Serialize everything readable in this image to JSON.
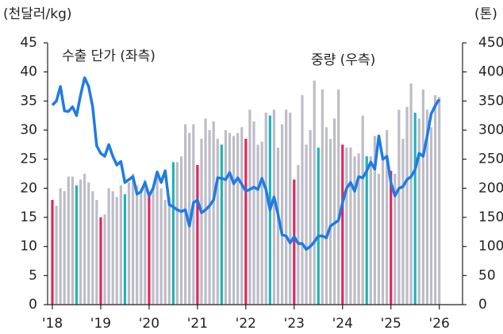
{
  "chart_data": {
    "type": "bar_line",
    "y_label": "(천달러/kg)",
    "y2_label": "(톤)",
    "categories": [
      "'18",
      null,
      null,
      null,
      null,
      null,
      null,
      null,
      null,
      null,
      null,
      null,
      "'19",
      null,
      null,
      null,
      null,
      null,
      null,
      null,
      null,
      null,
      null,
      null,
      "'20",
      null,
      null,
      null,
      null,
      null,
      null,
      null,
      null,
      null,
      null,
      null,
      "'21",
      null,
      null,
      null,
      null,
      null,
      null,
      null,
      null,
      null,
      null,
      null,
      "'22",
      null,
      null,
      null,
      null,
      null,
      null,
      null,
      null,
      null,
      null,
      null,
      "'23",
      null,
      null,
      null,
      null,
      null,
      null,
      null,
      null,
      null,
      null,
      null,
      "'24",
      null,
      null,
      null,
      null,
      null,
      null,
      null,
      null,
      null,
      null,
      null,
      "'25",
      null,
      null,
      null,
      null,
      null,
      null,
      null,
      null,
      null,
      null,
      null,
      "'26"
    ],
    "ylim": [
      0,
      45
    ],
    "yticks": [
      0,
      5,
      10,
      15,
      20,
      25,
      30,
      35,
      40,
      45
    ],
    "y2lim": [
      0,
      450
    ],
    "y2ticks": [
      0,
      50,
      100,
      150,
      200,
      250,
      300,
      350,
      400,
      450
    ],
    "series": [
      {
        "name": "중량 (우측)",
        "type": "bar",
        "axis": "y2",
        "color": "#bdbdc7",
        "colors": [
          "#e2245c",
          "#bdbdc7",
          "#bdbdc7",
          "#bdbdc7",
          "#bdbdc7",
          "#bdbdc7",
          "#1fb3b8",
          "#bdbdc7",
          "#bdbdc7",
          "#bdbdc7",
          "#bdbdc7",
          "#bdbdc7",
          "#e2245c",
          "#bdbdc7",
          "#bdbdc7",
          "#bdbdc7",
          "#bdbdc7",
          "#bdbdc7",
          "#1fb3b8",
          "#bdbdc7",
          "#bdbdc7",
          "#bdbdc7",
          "#bdbdc7",
          "#bdbdc7",
          "#e2245c",
          "#bdbdc7",
          "#bdbdc7",
          "#bdbdc7",
          "#bdbdc7",
          "#bdbdc7",
          "#1fb3b8",
          "#bdbdc7",
          "#bdbdc7",
          "#bdbdc7",
          "#bdbdc7",
          "#bdbdc7",
          "#e2245c",
          "#bdbdc7",
          "#bdbdc7",
          "#bdbdc7",
          "#bdbdc7",
          "#bdbdc7",
          "#1fb3b8",
          "#bdbdc7",
          "#bdbdc7",
          "#bdbdc7",
          "#bdbdc7",
          "#bdbdc7",
          "#e2245c",
          "#bdbdc7",
          "#bdbdc7",
          "#bdbdc7",
          "#bdbdc7",
          "#bdbdc7",
          "#1fb3b8",
          "#bdbdc7",
          "#bdbdc7",
          "#bdbdc7",
          "#bdbdc7",
          "#bdbdc7",
          "#e2245c",
          "#bdbdc7",
          "#bdbdc7",
          "#bdbdc7",
          "#bdbdc7",
          "#bdbdc7",
          "#1fb3b8",
          "#bdbdc7",
          "#bdbdc7",
          "#bdbdc7",
          "#bdbdc7",
          "#bdbdc7",
          "#e2245c",
          "#bdbdc7",
          "#bdbdc7",
          "#bdbdc7",
          "#bdbdc7",
          "#bdbdc7",
          "#1fb3b8",
          "#bdbdc7",
          "#bdbdc7",
          "#bdbdc7",
          "#bdbdc7",
          "#bdbdc7",
          "#e2245c",
          "#bdbdc7",
          "#bdbdc7",
          "#bdbdc7",
          "#bdbdc7",
          "#bdbdc7",
          "#1fb3b8",
          "#bdbdc7",
          "#bdbdc7",
          "#bdbdc7",
          "#bdbdc7",
          "#bdbdc7",
          "#bdbdc7"
        ],
        "values": [
          180,
          170,
          200,
          195,
          220,
          220,
          205,
          215,
          225,
          210,
          195,
          180,
          150,
          155,
          200,
          195,
          185,
          205,
          190,
          210,
          225,
          205,
          200,
          215,
          190,
          200,
          225,
          200,
          180,
          185,
          245,
          245,
          255,
          310,
          295,
          310,
          240,
          285,
          320,
          300,
          315,
          285,
          275,
          300,
          295,
          290,
          295,
          305,
          285,
          335,
          315,
          275,
          280,
          330,
          325,
          335,
          270,
          310,
          335,
          330,
          215,
          240,
          360,
          275,
          300,
          385,
          270,
          370,
          305,
          285,
          320,
          370,
          275,
          270,
          270,
          255,
          260,
          325,
          255,
          255,
          290,
          225,
          250,
          300,
          230,
          225,
          335,
          285,
          340,
          380,
          330,
          320,
          370,
          335,
          305,
          360,
          357
        ]
      },
      {
        "name": "수출 단가 (좌측)",
        "type": "line",
        "color": "#1e7be6",
        "values": [
          34.3,
          35,
          37.5,
          33.3,
          33.2,
          34,
          32.5,
          36,
          39,
          37.5,
          34,
          27.3,
          26,
          25.5,
          27.5,
          25.5,
          24,
          24.6,
          21,
          21.5,
          22,
          19,
          19.4,
          21,
          18.7,
          20,
          22.8,
          21,
          23,
          17.2,
          16.8,
          16.3,
          16,
          16.3,
          13.5,
          17.5,
          18,
          15.8,
          16.3,
          17,
          18,
          21.8,
          21.7,
          21.5,
          22.7,
          20.8,
          21.8,
          20.7,
          19.5,
          19.8,
          20.2,
          19.8,
          21.7,
          19.8,
          16.3,
          18.5,
          15.5,
          12,
          11.8,
          10.6,
          11.7,
          10.5,
          10.5,
          9.5,
          10,
          10.8,
          11.8,
          11.8,
          11.5,
          13.5,
          14,
          14.5,
          17.5,
          20,
          21,
          19.5,
          22,
          21.8,
          23,
          24.5,
          23.3,
          29,
          25,
          25.5,
          21,
          18.7,
          20,
          20.3,
          21.5,
          22,
          23.2,
          26,
          25.5,
          29,
          32.8,
          34.2,
          35.3
        ]
      }
    ]
  }
}
